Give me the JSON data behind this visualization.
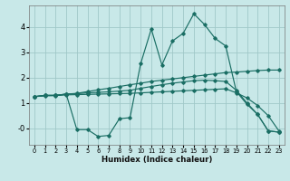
{
  "background_color": "#c8e8e8",
  "grid_color": "#a0c8c8",
  "line_color": "#1a6e64",
  "xlabel": "Humidex (Indice chaleur)",
  "xlim": [
    -0.5,
    23.5
  ],
  "ylim": [
    -0.65,
    4.85
  ],
  "yticks": [
    0,
    1,
    2,
    3,
    4
  ],
  "ytick_labels": [
    "-0",
    "1",
    "2",
    "3",
    "4"
  ],
  "xticks": [
    0,
    1,
    2,
    3,
    4,
    5,
    6,
    7,
    8,
    9,
    10,
    11,
    12,
    13,
    14,
    15,
    16,
    17,
    18,
    19,
    20,
    21,
    22,
    23
  ],
  "lines": [
    {
      "x": [
        0,
        1,
        2,
        3,
        4,
        5,
        6,
        7,
        8,
        9,
        10,
        11,
        12,
        13,
        14,
        15,
        16,
        17,
        18,
        19,
        20,
        21,
        22,
        23
      ],
      "y": [
        1.25,
        1.3,
        1.3,
        1.35,
        -0.05,
        -0.05,
        -0.32,
        -0.28,
        0.38,
        0.42,
        2.55,
        3.92,
        2.5,
        3.45,
        3.75,
        4.52,
        4.1,
        3.55,
        3.25,
        1.45,
        0.95,
        0.55,
        -0.1,
        -0.15
      ]
    },
    {
      "x": [
        0,
        1,
        2,
        3,
        4,
        5,
        6,
        7,
        8,
        9,
        10,
        11,
        12,
        13,
        14,
        15,
        16,
        17,
        18,
        19,
        20,
        21,
        22,
        23
      ],
      "y": [
        1.25,
        1.3,
        1.3,
        1.35,
        1.38,
        1.45,
        1.52,
        1.58,
        1.65,
        1.72,
        1.78,
        1.85,
        1.9,
        1.95,
        2.0,
        2.05,
        2.1,
        2.15,
        2.2,
        2.22,
        2.25,
        2.28,
        2.3,
        2.3
      ]
    },
    {
      "x": [
        0,
        1,
        2,
        3,
        4,
        5,
        6,
        7,
        8,
        9,
        10,
        11,
        12,
        13,
        14,
        15,
        16,
        17,
        18,
        19,
        20,
        21,
        22,
        23
      ],
      "y": [
        1.25,
        1.3,
        1.3,
        1.35,
        1.37,
        1.4,
        1.42,
        1.44,
        1.47,
        1.5,
        1.58,
        1.65,
        1.72,
        1.78,
        1.83,
        1.88,
        1.9,
        1.88,
        1.85,
        1.5,
        1.0,
        0.55,
        -0.1,
        -0.15
      ]
    },
    {
      "x": [
        0,
        1,
        2,
        3,
        4,
        5,
        6,
        7,
        8,
        9,
        10,
        11,
        12,
        13,
        14,
        15,
        16,
        17,
        18,
        19,
        20,
        21,
        22,
        23
      ],
      "y": [
        1.25,
        1.28,
        1.29,
        1.32,
        1.33,
        1.34,
        1.35,
        1.36,
        1.37,
        1.38,
        1.4,
        1.42,
        1.44,
        1.46,
        1.48,
        1.5,
        1.52,
        1.54,
        1.56,
        1.4,
        1.2,
        0.9,
        0.5,
        -0.1
      ]
    }
  ]
}
